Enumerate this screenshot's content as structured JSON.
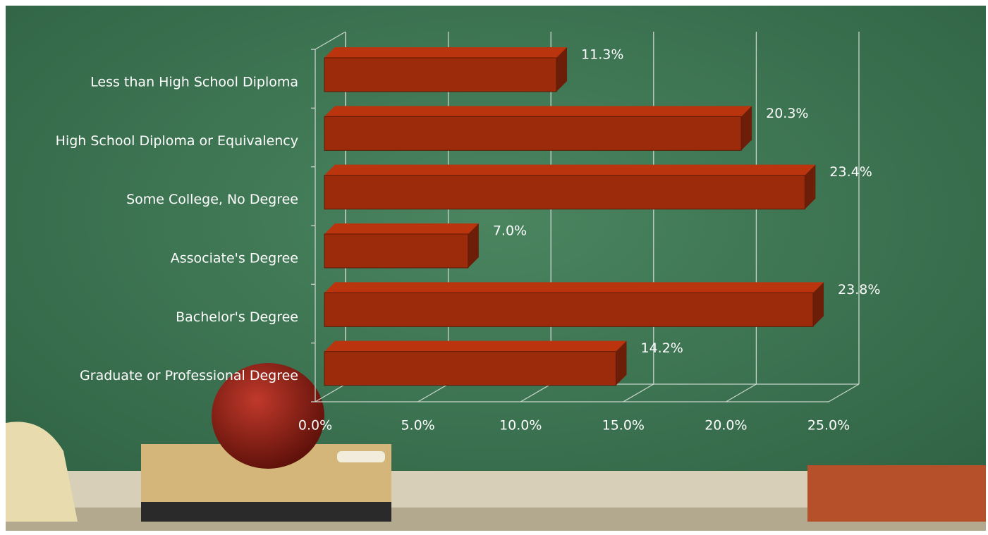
{
  "chart_data": {
    "type": "bar3d-horizontal",
    "categories": [
      "Less than High School Diploma",
      "High School Diploma or Equivalency",
      "Some College, No Degree",
      "Associate's Degree",
      "Bachelor's Degree",
      "Graduate or Professional Degree"
    ],
    "values": [
      11.3,
      20.3,
      23.4,
      7.0,
      23.8,
      14.2
    ],
    "value_labels": [
      "11.3%",
      "20.3%",
      "23.4%",
      "7.0%",
      "23.8%",
      "14.2%"
    ],
    "color": "#9b2b0b",
    "xlim": [
      0,
      25
    ],
    "xticks": [
      {
        "value": 0,
        "label": "0.0%"
      },
      {
        "value": 5,
        "label": "5.0%"
      },
      {
        "value": 10,
        "label": "10.0%"
      },
      {
        "value": 15,
        "label": "15.0%"
      },
      {
        "value": 20,
        "label": "20.0%"
      },
      {
        "value": 25,
        "label": "25.0%"
      }
    ],
    "grid": true
  }
}
